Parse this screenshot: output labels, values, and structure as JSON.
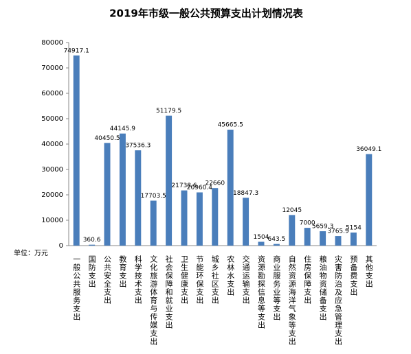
{
  "chart_data": {
    "type": "bar",
    "title": "2019年市级一般公共预算支出计划情况表",
    "unit_label": "单位：万元",
    "categories": [
      "一般公共服务支出",
      "国防支出",
      "公共安全支出",
      "教育支出",
      "科学技术支出",
      "文化旅游体育与传媒支出",
      "社会保障和就业支出",
      "卫生健康支出",
      "节能环保支出",
      "城乡社区支出",
      "农林水支出",
      "交通运输支出",
      "资源勘探信息等支出",
      "商业服务业等支出",
      "自然资源海洋气象等支出",
      "住房保障支出",
      "粮油物资储备支出",
      "灾害防治及应急管理支出",
      "预备费支出",
      "其他支出"
    ],
    "values": [
      74917.1,
      360.6,
      40450.5,
      44145.9,
      37536.3,
      17703.5,
      51179.5,
      21738.6,
      20960.4,
      22660,
      45665.5,
      18847.3,
      1504,
      643.5,
      12045,
      7000,
      5659.3,
      3765.9,
      5154,
      36049.1
    ],
    "color": "#4a7ebb",
    "ylim": [
      0,
      80000
    ],
    "yticks": [
      0,
      10000,
      20000,
      30000,
      40000,
      50000,
      60000,
      70000,
      80000
    ],
    "grid": false
  }
}
